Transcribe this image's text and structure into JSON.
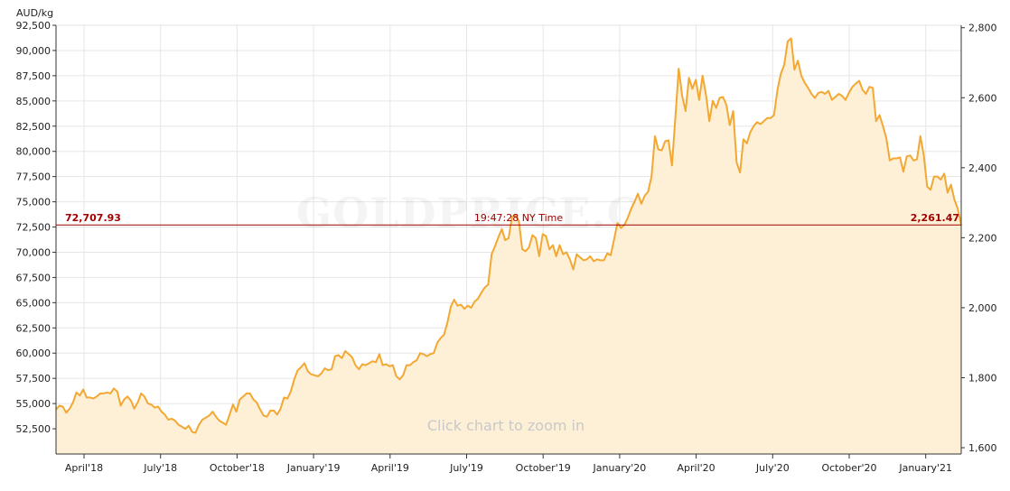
{
  "chart_data": {
    "type": "area",
    "y_unit_label": "AUD/kg",
    "watermark": "GOLDPRICE.ORG",
    "hint": "Click chart to zoom in",
    "ylim": [
      50000,
      92500
    ],
    "yticks": [
      "52,500",
      "55,000",
      "57,500",
      "60,000",
      "62,500",
      "65,000",
      "67,500",
      "70,000",
      "72,500",
      "75,000",
      "77,500",
      "80,000",
      "82,500",
      "85,000",
      "87,500",
      "90,000",
      "92,500"
    ],
    "y2lim": [
      1582,
      2807
    ],
    "y2ticks": [
      "1,600",
      "1,800",
      "2,000",
      "2,200",
      "2,400",
      "2,600",
      "2,800"
    ],
    "xticks": [
      "April'18",
      "July'18",
      "October'18",
      "January'19",
      "April'19",
      "July'19",
      "October'19",
      "January'20",
      "April'20",
      "July'20",
      "October'20",
      "January'21"
    ],
    "current": {
      "value": 72707.93,
      "value_label": "72,707.93",
      "time_label": "19:47:28 NY Time",
      "oz_label": "2,261.47"
    },
    "grid": true,
    "line_color": "#f2a832",
    "fill_color": "#fdf0d6",
    "current_line_color": "#a30000",
    "series": [
      {
        "values": [
          54400,
          54800,
          54700,
          54100,
          54500,
          55100,
          56100,
          55800,
          56400,
          55600,
          55600,
          55500,
          55700,
          56000,
          56000,
          56100,
          56000,
          56500,
          56200,
          54800,
          55400,
          55700,
          55300,
          54500,
          55100,
          56000,
          55700,
          55000,
          54900,
          54600,
          54700,
          54200,
          53900,
          53400,
          53500,
          53300,
          52900,
          52700,
          52500,
          52800,
          52200,
          52100,
          52900,
          53400,
          53600,
          53800,
          54200,
          53700,
          53300,
          53100,
          52900,
          53900,
          54900,
          54200,
          55400,
          55700,
          56000,
          56000,
          55400,
          55100,
          54400,
          53800,
          53700,
          54300,
          54300,
          53900,
          54500,
          55600,
          55500,
          56200,
          57400,
          58300,
          58600,
          59000,
          58200,
          57900,
          57800,
          57700,
          58000,
          58500,
          58300,
          58400,
          59700,
          59800,
          59500,
          60200,
          59900,
          59600,
          58800,
          58400,
          58900,
          58800,
          59000,
          59200,
          59100,
          59900,
          58800,
          58900,
          58700,
          58800,
          57700,
          57400,
          57800,
          58800,
          58800,
          59100,
          59300,
          60000,
          59900,
          59700,
          59900,
          60000,
          61000,
          61500,
          61800,
          63000,
          64600,
          65300,
          64700,
          64800,
          64400,
          64700,
          64500,
          65100,
          65400,
          66000,
          66500,
          66800,
          69800,
          70600,
          71500,
          72300,
          71200,
          71400,
          73500,
          73700,
          73100,
          70300,
          70100,
          70500,
          71700,
          71400,
          69600,
          71800,
          71600,
          70300,
          70700,
          69600,
          70700,
          69800,
          70000,
          69300,
          68300,
          69800,
          69500,
          69200,
          69300,
          69600,
          69100,
          69300,
          69200,
          69200,
          69900,
          69700,
          71300,
          72900,
          72400,
          72700,
          73400,
          74300,
          75000,
          75800,
          74800,
          75600,
          76000,
          77500,
          81500,
          80200,
          80100,
          81000,
          81100,
          78600,
          83400,
          88200,
          85500,
          84000,
          87300,
          86200,
          87100,
          85100,
          87500,
          85600,
          83000,
          85000,
          84300,
          85300,
          85400,
          84600,
          82600,
          84000,
          78900,
          77900,
          81200,
          80800,
          81900,
          82500,
          82900,
          82700,
          83000,
          83300,
          83300,
          83600,
          86100,
          87700,
          88600,
          90900,
          91200,
          88100,
          89000,
          87500,
          86800,
          86300,
          85700,
          85300,
          85800,
          85900,
          85700,
          86000,
          85100,
          85400,
          85700,
          85500,
          85100,
          85800,
          86400,
          86700,
          87000,
          86100,
          85700,
          86400,
          86300,
          83000,
          83600,
          82500,
          81300,
          79100,
          79300,
          79300,
          79400,
          78000,
          79500,
          79600,
          79100,
          79200,
          81500,
          79600,
          76500,
          76200,
          77500,
          77500,
          77200,
          77800,
          75900,
          76700,
          75200,
          74300,
          72700
        ]
      }
    ]
  }
}
